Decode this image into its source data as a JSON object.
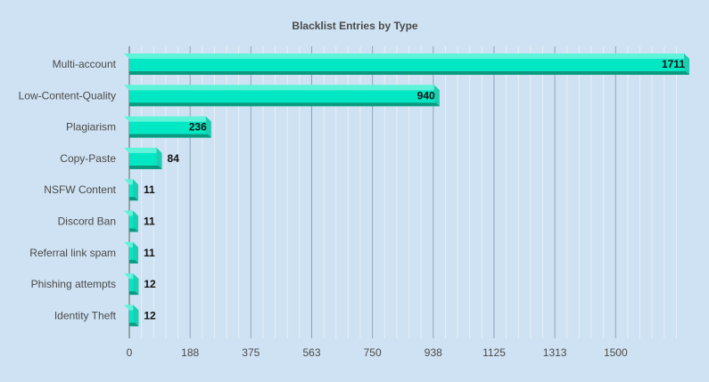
{
  "chart_data": {
    "type": "bar",
    "orientation": "horizontal",
    "title": "Blacklist Entries by Type",
    "xlabel": "",
    "ylabel": "",
    "categories": [
      "Multi-account",
      "Low-Content-Quality",
      "Plagiarism",
      "Copy-Paste",
      "NSFW Content",
      "Discord Ban",
      "Referral link spam",
      "Phishing attempts",
      "Identity Theft"
    ],
    "values": [
      1711,
      940,
      236,
      84,
      11,
      11,
      11,
      12,
      12
    ],
    "value_labels": [
      "1711",
      "940",
      "236",
      "84",
      "11",
      "11",
      "11",
      "12",
      "12"
    ],
    "xlim": [
      0,
      1711
    ],
    "x_ticks": [
      "0",
      "188",
      "375",
      "563",
      "750",
      "938",
      "1125",
      "1313",
      "1500"
    ],
    "x_tick_values": [
      0,
      187.5,
      375,
      562.5,
      750,
      937.5,
      1125,
      1312.5,
      1500
    ],
    "grid": true,
    "legend": "none",
    "colors": {
      "background": "#cfe2f3",
      "bar_face": "#00e8c3",
      "bar_top": "#5ff3da",
      "bar_bottom": "#0b9a80",
      "bar_side": "#1fcdb0",
      "grid_major": "#8aa3b5",
      "grid_minor": "#e6eef5",
      "text": "#4a4a4a",
      "value_text": "#111111"
    }
  }
}
